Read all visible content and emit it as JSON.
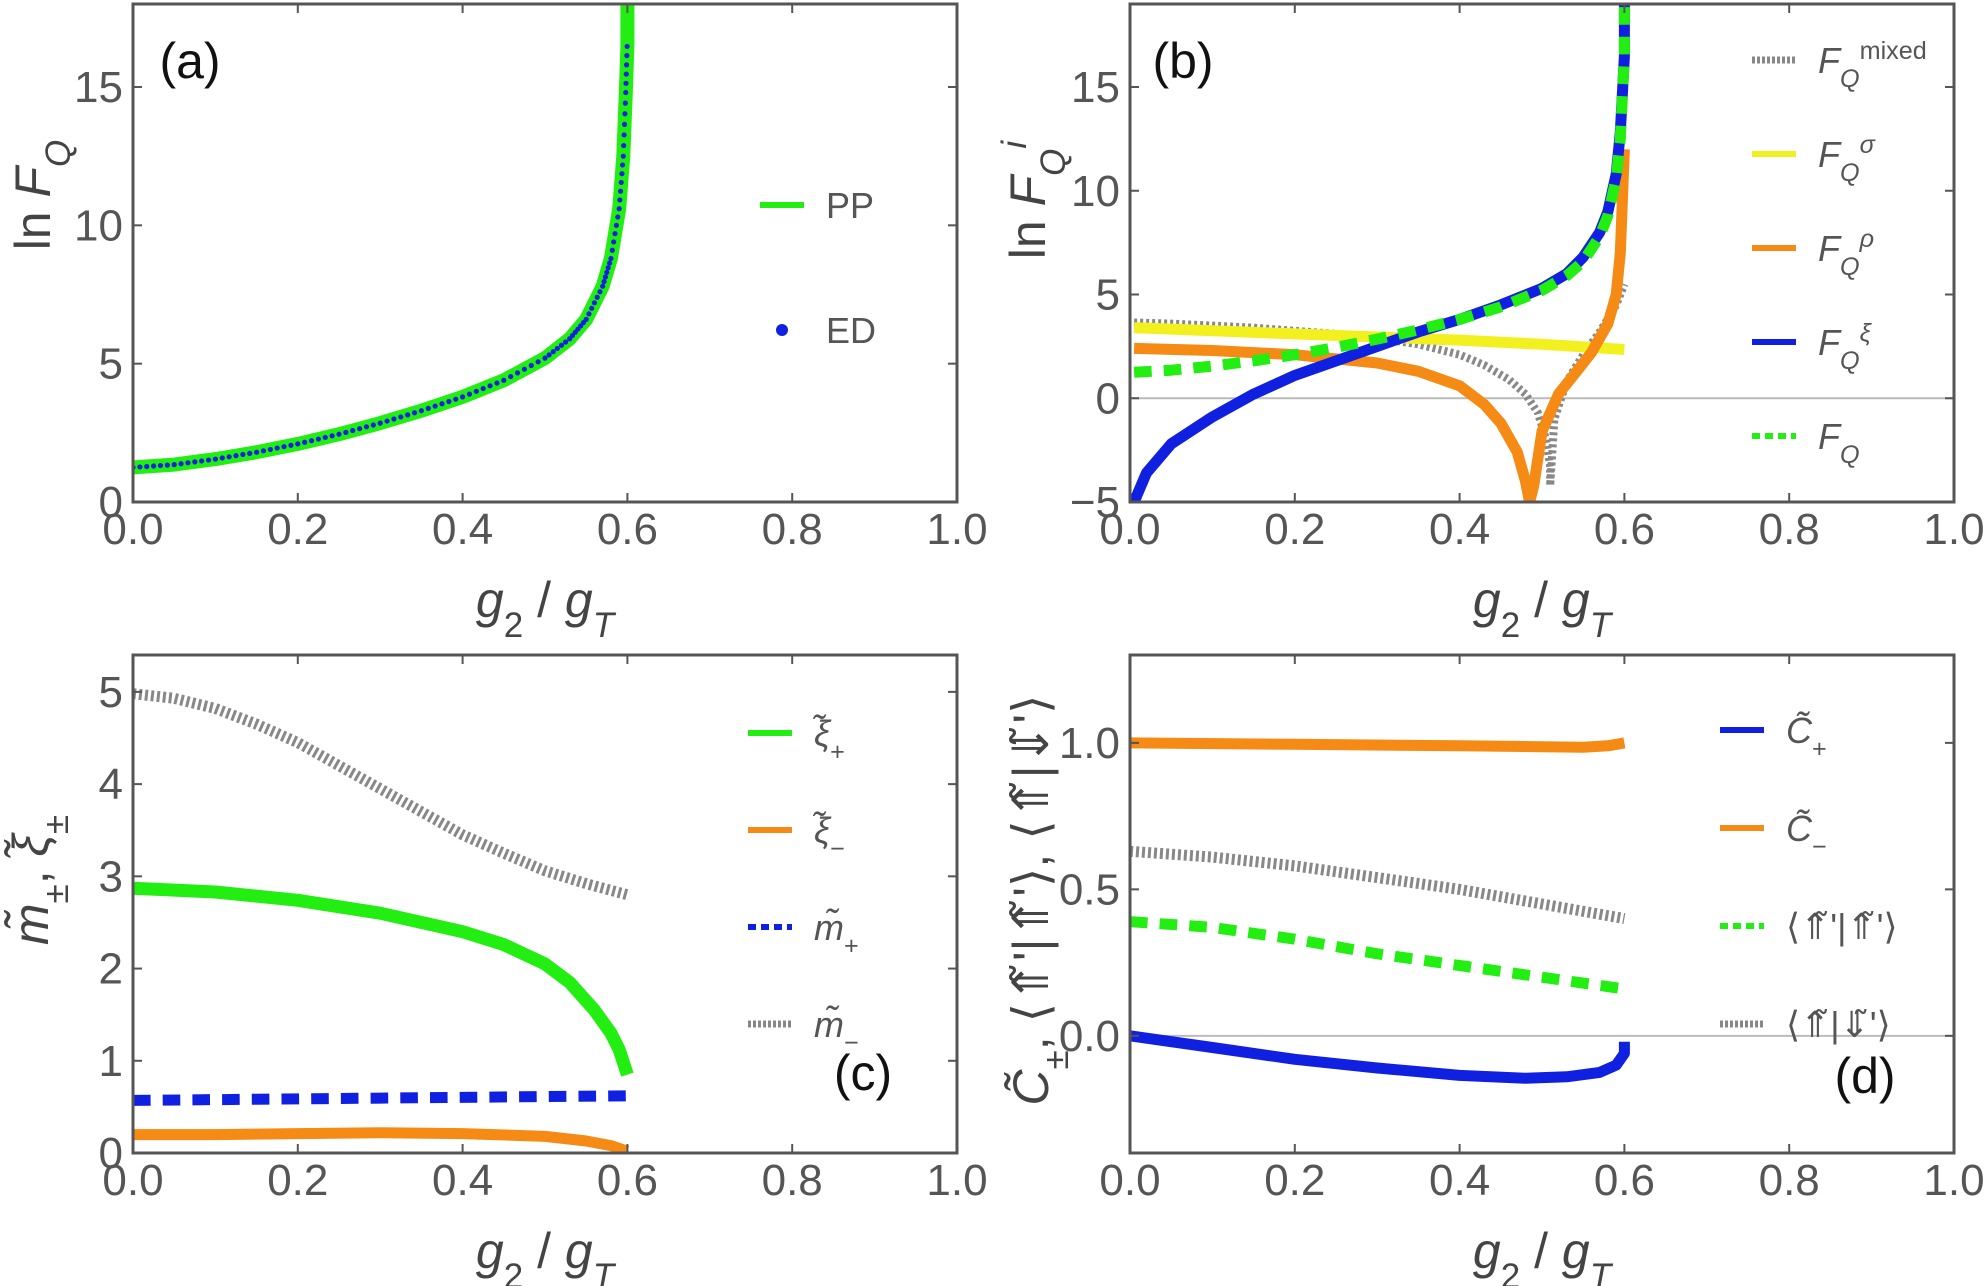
{
  "chart_data": [
    {
      "type": "line",
      "panel_label": "(a)",
      "xlabel": "g₂ / gᵀ",
      "ylabel": "ln Fᵩ",
      "xlim": [
        0,
        1
      ],
      "ylim": [
        0,
        18
      ],
      "xticks": [
        "0.0",
        "0.2",
        "0.4",
        "0.6",
        "0.8",
        "1.0"
      ],
      "yticks": [
        {
          "v": 0,
          "label": "0"
        },
        {
          "v": 5,
          "label": "5"
        },
        {
          "v": 10,
          "label": "10"
        },
        {
          "v": 15,
          "label": "15"
        }
      ],
      "legend_position": "right",
      "series": [
        {
          "name": "PP",
          "style": "solid",
          "color": "#22ee11",
          "width": 14,
          "x": [
            0,
            0.05,
            0.1,
            0.15,
            0.2,
            0.25,
            0.3,
            0.35,
            0.4,
            0.45,
            0.5,
            0.53,
            0.55,
            0.57,
            0.58,
            0.59,
            0.595,
            0.598,
            0.6,
            0.6
          ],
          "y": [
            1.25,
            1.35,
            1.55,
            1.8,
            2.1,
            2.45,
            2.85,
            3.3,
            3.8,
            4.4,
            5.2,
            5.9,
            6.6,
            7.8,
            8.8,
            10.6,
            12.5,
            14.8,
            16.5,
            18
          ]
        },
        {
          "name": "ED",
          "style": "dots",
          "color": "#1020e0",
          "width": 5,
          "x": [
            0,
            0.05,
            0.1,
            0.15,
            0.2,
            0.25,
            0.3,
            0.35,
            0.4,
            0.45,
            0.5,
            0.53,
            0.55,
            0.57,
            0.58,
            0.59,
            0.595,
            0.598,
            0.6
          ],
          "y": [
            1.25,
            1.35,
            1.55,
            1.8,
            2.1,
            2.45,
            2.85,
            3.3,
            3.8,
            4.4,
            5.2,
            5.9,
            6.6,
            7.8,
            8.8,
            10.6,
            12.5,
            14.8,
            16.8
          ]
        }
      ]
    },
    {
      "type": "line",
      "panel_label": "(b)",
      "xlabel": "g₂ / gᵀ",
      "ylabel": "ln Fᵩⁱ",
      "xlim": [
        0,
        1
      ],
      "ylim": [
        -5,
        19
      ],
      "xticks": [
        "0.0",
        "0.2",
        "0.4",
        "0.6",
        "0.8",
        "1.0"
      ],
      "yticks": [
        {
          "v": -5,
          "label": "−5"
        },
        {
          "v": 0,
          "label": "0"
        },
        {
          "v": 5,
          "label": "5"
        },
        {
          "v": 10,
          "label": "10"
        },
        {
          "v": 15,
          "label": "15"
        }
      ],
      "zero_line": true,
      "legend_position": "right",
      "series": [
        {
          "name": "Fᵩ mixed",
          "style": "dotted",
          "color": "#888888",
          "width": 8,
          "x": [
            0.005,
            0.05,
            0.1,
            0.15,
            0.2,
            0.25,
            0.3,
            0.35,
            0.4,
            0.43,
            0.46,
            0.48,
            0.495,
            0.505,
            0.51,
            0.51,
            0.515,
            0.53,
            0.55,
            0.57,
            0.59,
            0.6
          ],
          "y": [
            3.65,
            3.6,
            3.5,
            3.4,
            3.25,
            3.1,
            2.9,
            2.6,
            2.1,
            1.6,
            0.9,
            0.2,
            -0.7,
            -2.0,
            -3.3,
            -4.2,
            -1.0,
            0.8,
            2.1,
            3.2,
            4.5,
            5.5
          ]
        },
        {
          "name": "Fᵩ σ",
          "style": "solid",
          "color": "#f3f020",
          "width": 11,
          "x": [
            0.005,
            0.1,
            0.2,
            0.3,
            0.4,
            0.5,
            0.6
          ],
          "y": [
            3.4,
            3.25,
            3.1,
            2.95,
            2.8,
            2.6,
            2.35
          ]
        },
        {
          "name": "Fᵩ ρ",
          "style": "solid",
          "color": "#f58a14",
          "width": 11,
          "x": [
            0.005,
            0.1,
            0.2,
            0.3,
            0.35,
            0.4,
            0.43,
            0.45,
            0.47,
            0.48,
            0.485,
            0.49,
            0.5,
            0.52,
            0.54,
            0.56,
            0.58,
            0.59,
            0.595,
            0.6
          ],
          "y": [
            2.4,
            2.3,
            2.1,
            1.7,
            1.3,
            0.6,
            -0.3,
            -1.2,
            -2.6,
            -4.0,
            -5.0,
            -4.2,
            -1.6,
            0.2,
            1.2,
            2.2,
            3.6,
            5.0,
            7.0,
            12.0
          ]
        },
        {
          "name": "Fᵩ ξ",
          "style": "solid",
          "color": "#1020e0",
          "width": 11,
          "x": [
            0.005,
            0.02,
            0.05,
            0.1,
            0.15,
            0.2,
            0.25,
            0.3,
            0.35,
            0.4,
            0.45,
            0.5,
            0.53,
            0.55,
            0.57,
            0.58,
            0.59,
            0.595,
            0.6,
            0.6
          ],
          "y": [
            -5.0,
            -3.6,
            -2.2,
            -0.9,
            0.2,
            1.1,
            1.8,
            2.5,
            3.2,
            3.8,
            4.5,
            5.3,
            6.0,
            6.8,
            8.0,
            9.0,
            10.8,
            12.8,
            16.5,
            19
          ]
        },
        {
          "name": "Fᵩ",
          "style": "dashed",
          "color": "#22ee11",
          "width": 11,
          "x": [
            0.005,
            0.05,
            0.1,
            0.15,
            0.2,
            0.25,
            0.3,
            0.35,
            0.4,
            0.45,
            0.5,
            0.53,
            0.55,
            0.57,
            0.58,
            0.59,
            0.595,
            0.6,
            0.6
          ],
          "y": [
            1.25,
            1.35,
            1.55,
            1.8,
            2.1,
            2.45,
            2.85,
            3.3,
            3.8,
            4.4,
            5.2,
            5.9,
            6.6,
            7.8,
            8.8,
            10.6,
            12.5,
            16.5,
            19
          ]
        }
      ]
    },
    {
      "type": "line",
      "panel_label": "(c)",
      "xlabel": "g₂ / gᵀ",
      "ylabel": "m̃±, ξ̃±",
      "xlim": [
        0,
        1
      ],
      "ylim": [
        0,
        5.4
      ],
      "xticks": [
        "0.0",
        "0.2",
        "0.4",
        "0.6",
        "0.8",
        "1.0"
      ],
      "yticks": [
        {
          "v": 0,
          "label": "0"
        },
        {
          "v": 1,
          "label": "1"
        },
        {
          "v": 2,
          "label": "2"
        },
        {
          "v": 3,
          "label": "3"
        },
        {
          "v": 4,
          "label": "4"
        },
        {
          "v": 5,
          "label": "5"
        }
      ],
      "legend_position": "right",
      "series": [
        {
          "name": "ξ̃+",
          "style": "solid",
          "color": "#22ee11",
          "width": 13,
          "x": [
            0,
            0.1,
            0.2,
            0.3,
            0.4,
            0.45,
            0.5,
            0.53,
            0.56,
            0.58,
            0.59,
            0.6
          ],
          "y": [
            2.87,
            2.83,
            2.74,
            2.6,
            2.4,
            2.26,
            2.05,
            1.85,
            1.55,
            1.3,
            1.12,
            0.85
          ]
        },
        {
          "name": "ξ̃−",
          "style": "solid",
          "color": "#f58a14",
          "width": 11,
          "x": [
            0,
            0.1,
            0.2,
            0.3,
            0.4,
            0.5,
            0.55,
            0.58,
            0.6
          ],
          "y": [
            0.2,
            0.2,
            0.21,
            0.22,
            0.21,
            0.18,
            0.13,
            0.08,
            0.02
          ]
        },
        {
          "name": "m̃+",
          "style": "dashed",
          "color": "#1020e0",
          "width": 11,
          "x": [
            0,
            0.6
          ],
          "y": [
            0.57,
            0.62
          ]
        },
        {
          "name": "m̃−",
          "style": "dotted",
          "color": "#888888",
          "width": 11,
          "x": [
            0,
            0.05,
            0.1,
            0.15,
            0.2,
            0.25,
            0.3,
            0.35,
            0.4,
            0.45,
            0.5,
            0.55,
            0.6
          ],
          "y": [
            4.98,
            4.93,
            4.82,
            4.65,
            4.45,
            4.2,
            3.95,
            3.7,
            3.45,
            3.25,
            3.06,
            2.92,
            2.8
          ]
        }
      ]
    },
    {
      "type": "line",
      "panel_label": "(d)",
      "xlabel": "g₂ / gᵀ",
      "ylabel": "C̃±, ⟨⇑̃'|⇑̃'⟩, ⟨⇑̃|⇓̃'⟩",
      "xlim": [
        0,
        1
      ],
      "ylim": [
        -0.4,
        1.3
      ],
      "xticks": [
        "0.0",
        "0.2",
        "0.4",
        "0.6",
        "0.8",
        "1.0"
      ],
      "yticks": [
        {
          "v": 0,
          "label": "0.0"
        },
        {
          "v": 0.5,
          "label": "0.5"
        },
        {
          "v": 1,
          "label": "1.0"
        }
      ],
      "zero_line": true,
      "legend_position": "right",
      "series": [
        {
          "name": "C̃+",
          "style": "solid",
          "color": "#1020e0",
          "width": 11,
          "x": [
            0,
            0.1,
            0.2,
            0.3,
            0.4,
            0.48,
            0.53,
            0.57,
            0.59,
            0.6,
            0.6
          ],
          "y": [
            0.0,
            -0.04,
            -0.08,
            -0.11,
            -0.135,
            -0.145,
            -0.14,
            -0.125,
            -0.1,
            -0.06,
            -0.02
          ]
        },
        {
          "name": "C̃−",
          "style": "solid",
          "color": "#f58a14",
          "width": 11,
          "x": [
            0,
            0.2,
            0.4,
            0.5,
            0.55,
            0.58,
            0.6
          ],
          "y": [
            1.0,
            0.995,
            0.99,
            0.987,
            0.985,
            0.99,
            1.0
          ]
        },
        {
          "name": "⟨⇑̃'|⇑̃'⟩",
          "style": "dashed",
          "color": "#22ee11",
          "width": 11,
          "x": [
            0,
            0.1,
            0.2,
            0.3,
            0.4,
            0.5,
            0.6
          ],
          "y": [
            0.39,
            0.37,
            0.33,
            0.28,
            0.24,
            0.2,
            0.16
          ]
        },
        {
          "name": "⟨⇑̃|⇓̃'⟩",
          "style": "dotted",
          "color": "#888888",
          "width": 11,
          "x": [
            0,
            0.1,
            0.2,
            0.3,
            0.4,
            0.5,
            0.6
          ],
          "y": [
            0.63,
            0.61,
            0.58,
            0.54,
            0.5,
            0.45,
            0.4
          ]
        }
      ]
    }
  ]
}
